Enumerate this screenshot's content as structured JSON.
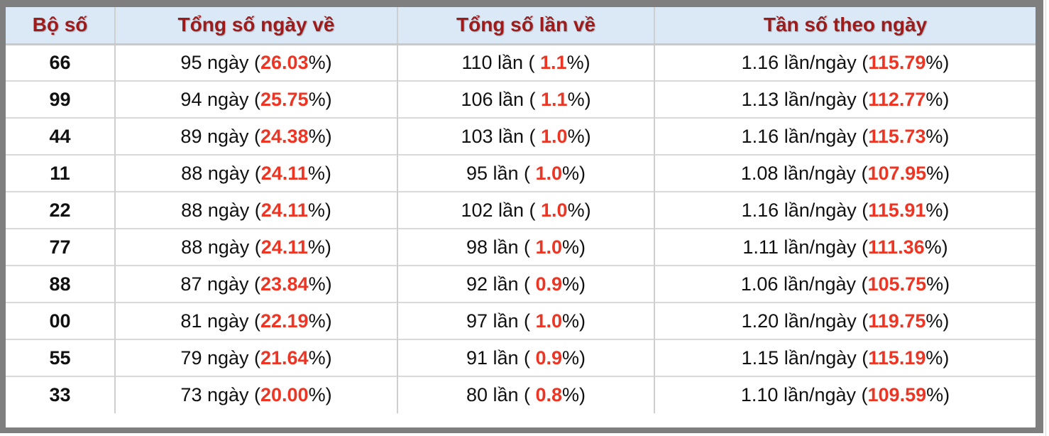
{
  "chart_data": {
    "type": "table",
    "columns": [
      "Bộ số",
      "Tổng số ngày về",
      "Tổng số lần về",
      "Tần số theo ngày"
    ],
    "rows": [
      {
        "pair": "66",
        "days": {
          "prefix": "95 ngày (",
          "value": "26.03",
          "suffix": "%)"
        },
        "times": {
          "prefix": "110 lần ( ",
          "value": "1.1",
          "suffix": "%)"
        },
        "freq": {
          "prefix": "1.16 lần/ngày (",
          "value": "115.79",
          "suffix": "%)"
        }
      },
      {
        "pair": "99",
        "days": {
          "prefix": "94 ngày (",
          "value": "25.75",
          "suffix": "%)"
        },
        "times": {
          "prefix": "106 lần ( ",
          "value": "1.1",
          "suffix": "%)"
        },
        "freq": {
          "prefix": "1.13 lần/ngày (",
          "value": "112.77",
          "suffix": "%)"
        }
      },
      {
        "pair": "44",
        "days": {
          "prefix": "89 ngày (",
          "value": "24.38",
          "suffix": "%)"
        },
        "times": {
          "prefix": "103 lần ( ",
          "value": "1.0",
          "suffix": "%)"
        },
        "freq": {
          "prefix": "1.16 lần/ngày (",
          "value": "115.73",
          "suffix": "%)"
        }
      },
      {
        "pair": "11",
        "days": {
          "prefix": "88 ngày (",
          "value": "24.11",
          "suffix": "%)"
        },
        "times": {
          "prefix": "95 lần ( ",
          "value": "1.0",
          "suffix": "%)"
        },
        "freq": {
          "prefix": "1.08 lần/ngày (",
          "value": "107.95",
          "suffix": "%)"
        }
      },
      {
        "pair": "22",
        "days": {
          "prefix": "88 ngày (",
          "value": "24.11",
          "suffix": "%)"
        },
        "times": {
          "prefix": "102 lần ( ",
          "value": "1.0",
          "suffix": "%)"
        },
        "freq": {
          "prefix": "1.16 lần/ngày (",
          "value": "115.91",
          "suffix": "%)"
        }
      },
      {
        "pair": "77",
        "days": {
          "prefix": "88 ngày (",
          "value": "24.11",
          "suffix": "%)"
        },
        "times": {
          "prefix": "98 lần ( ",
          "value": "1.0",
          "suffix": "%)"
        },
        "freq": {
          "prefix": "1.11 lần/ngày (",
          "value": "111.36",
          "suffix": "%)"
        }
      },
      {
        "pair": "88",
        "days": {
          "prefix": "87 ngày (",
          "value": "23.84",
          "suffix": "%)"
        },
        "times": {
          "prefix": "92 lần ( ",
          "value": "0.9",
          "suffix": "%)"
        },
        "freq": {
          "prefix": "1.06 lần/ngày (",
          "value": "105.75",
          "suffix": "%)"
        }
      },
      {
        "pair": "00",
        "days": {
          "prefix": "81 ngày (",
          "value": "22.19",
          "suffix": "%)"
        },
        "times": {
          "prefix": "97 lần ( ",
          "value": "1.0",
          "suffix": "%)"
        },
        "freq": {
          "prefix": "1.20 lần/ngày (",
          "value": "119.75",
          "suffix": "%)"
        }
      },
      {
        "pair": "55",
        "days": {
          "prefix": "79 ngày (",
          "value": "21.64",
          "suffix": "%)"
        },
        "times": {
          "prefix": "91 lần ( ",
          "value": "0.9",
          "suffix": "%)"
        },
        "freq": {
          "prefix": "1.15 lần/ngày (",
          "value": "115.19",
          "suffix": "%)"
        }
      },
      {
        "pair": "33",
        "days": {
          "prefix": "73 ngày (",
          "value": "20.00",
          "suffix": "%)"
        },
        "times": {
          "prefix": "80 lần ( ",
          "value": "0.8",
          "suffix": "%)"
        },
        "freq": {
          "prefix": "1.10 lần/ngày (",
          "value": "109.59",
          "suffix": "%)"
        }
      }
    ]
  },
  "colors": {
    "frame_gray": "#7f7f7f",
    "header_bg": "#dbe8f5",
    "header_text": "#9e1b1b",
    "accent_red": "#ee3524",
    "column_divider": "#cfcfcf",
    "row_divider": "#d9d9d9",
    "body_text": "#111111"
  }
}
